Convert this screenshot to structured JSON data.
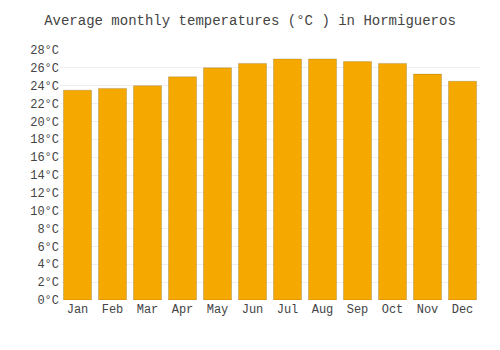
{
  "chart_data": {
    "type": "bar",
    "title": "Average monthly temperatures (°C ) in Hormigueros",
    "categories": [
      "Jan",
      "Feb",
      "Mar",
      "Apr",
      "May",
      "Jun",
      "Jul",
      "Aug",
      "Sep",
      "Oct",
      "Nov",
      "Dec"
    ],
    "values": [
      23.5,
      23.7,
      24.0,
      25.0,
      26.0,
      26.5,
      27.0,
      27.0,
      26.7,
      26.5,
      25.3,
      24.5
    ],
    "color": "#F5A800",
    "ylim": [
      0,
      28
    ],
    "yticks": [
      {
        "value": 0,
        "label": "0°C"
      },
      {
        "value": 2,
        "label": "2°C"
      },
      {
        "value": 4,
        "label": "4°C"
      },
      {
        "value": 6,
        "label": "6°C"
      },
      {
        "value": 8,
        "label": "8°C"
      },
      {
        "value": 10,
        "label": "10°C"
      },
      {
        "value": 12,
        "label": "12°C"
      },
      {
        "value": 14,
        "label": "14°C"
      },
      {
        "value": 16,
        "label": "16°C"
      },
      {
        "value": 18,
        "label": "18°C"
      },
      {
        "value": 20,
        "label": "20°C"
      },
      {
        "value": 22,
        "label": "22°C"
      },
      {
        "value": 24,
        "label": "24°C"
      },
      {
        "value": 26,
        "label": "26°C"
      },
      {
        "value": 28,
        "label": "28°C"
      }
    ],
    "grid": true
  }
}
